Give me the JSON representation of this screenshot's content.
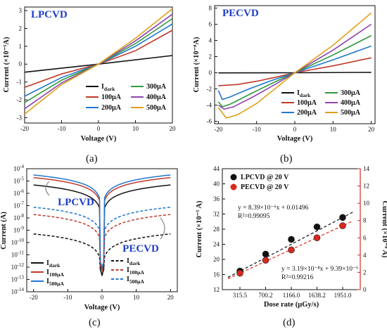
{
  "colors": {
    "dark": "#111111",
    "i100": "#c0392b",
    "i200": "#1f77d0",
    "i300": "#2e9a3e",
    "i400": "#8e44ad",
    "i500": "#e0a01a",
    "tag": "#1e3ec8",
    "right_axis": "#d9281e"
  },
  "chart_data": [
    {
      "panel": "(a)",
      "type": "line",
      "tag": "LPCVD",
      "xlabel": "Voltage (V)",
      "ylabel": "Current (×10⁻⁵A)",
      "xlim": [
        -20,
        20
      ],
      "ylim": [
        -3.3,
        3.2
      ],
      "xticks": [
        "-20",
        "-10",
        "0",
        "10",
        "20"
      ],
      "yticks": [
        "-3",
        "-2",
        "-1",
        "0",
        "1",
        "2",
        "3"
      ],
      "legend": [
        {
          "label": "Idark",
          "main": "I",
          "sub": "dark",
          "key": "dark"
        },
        {
          "label": "300µA",
          "key": "i300"
        },
        {
          "label": "100µA",
          "key": "i100"
        },
        {
          "label": "400µA",
          "key": "i400"
        },
        {
          "label": "200µA",
          "key": "i200"
        },
        {
          "label": "500µA",
          "key": "i500"
        }
      ],
      "series": [
        {
          "name": "Idark",
          "key": "dark",
          "points": [
            [
              -20,
              -0.45
            ],
            [
              0,
              0
            ],
            [
              20,
              0.48
            ]
          ]
        },
        {
          "name": "100µA",
          "key": "i100",
          "points": [
            [
              -20,
              -1.3
            ],
            [
              -10,
              -0.55
            ],
            [
              0,
              0
            ],
            [
              10,
              0.75
            ],
            [
              20,
              1.9
            ]
          ]
        },
        {
          "name": "200µA",
          "key": "i200",
          "points": [
            [
              -20,
              -1.8
            ],
            [
              -10,
              -0.75
            ],
            [
              0,
              0
            ],
            [
              10,
              1.0
            ],
            [
              20,
              2.25
            ]
          ]
        },
        {
          "name": "300µA",
          "key": "i300",
          "points": [
            [
              -20,
              -2.15
            ],
            [
              -10,
              -0.9
            ],
            [
              0,
              0
            ],
            [
              10,
              1.15
            ],
            [
              20,
              2.55
            ]
          ]
        },
        {
          "name": "400µA",
          "key": "i400",
          "points": [
            [
              -20,
              -2.5
            ],
            [
              -10,
              -1.05
            ],
            [
              0,
              0
            ],
            [
              10,
              1.3
            ],
            [
              20,
              2.8
            ]
          ]
        },
        {
          "name": "500µA",
          "key": "i500",
          "points": [
            [
              -20,
              -2.8
            ],
            [
              -10,
              -1.15
            ],
            [
              0,
              0
            ],
            [
              10,
              1.45
            ],
            [
              20,
              3.1
            ]
          ]
        }
      ]
    },
    {
      "panel": "(b)",
      "type": "line",
      "tag": "PECVD",
      "xlabel": "Voltage (V)",
      "ylabel": "Current (×10⁻⁸A)",
      "xlim": [
        -21,
        21
      ],
      "ylim": [
        -6.3,
        8.3
      ],
      "xticks": [
        "-20",
        "-10",
        "0",
        "10",
        "20"
      ],
      "yticks": [
        "-6",
        "-4",
        "-2",
        "0",
        "2",
        "4",
        "6",
        "8"
      ],
      "legend": [
        {
          "label": "Idark",
          "main": "I",
          "sub": "dark",
          "key": "dark"
        },
        {
          "label": "300µA",
          "key": "i300"
        },
        {
          "label": "100µA",
          "key": "i100"
        },
        {
          "label": "400µA",
          "key": "i400"
        },
        {
          "label": "200µA",
          "key": "i200"
        },
        {
          "label": "500µA",
          "key": "i500"
        }
      ],
      "series": [
        {
          "name": "Idark",
          "key": "dark",
          "points": [
            [
              -20,
              -0.02
            ],
            [
              0,
              0
            ],
            [
              20,
              0.05
            ]
          ]
        },
        {
          "name": "100µA",
          "key": "i100",
          "points": [
            [
              -20,
              -1.6
            ],
            [
              -15,
              -1.45
            ],
            [
              -10,
              -1.05
            ],
            [
              -5,
              -0.55
            ],
            [
              0,
              0
            ],
            [
              10,
              0.85
            ],
            [
              20,
              1.85
            ]
          ]
        },
        {
          "name": "200µA",
          "key": "i200",
          "points": [
            [
              -20,
              -2.2
            ],
            [
              -19,
              -3.3
            ],
            [
              -17,
              -3.0
            ],
            [
              -12,
              -2.0
            ],
            [
              -6,
              -0.95
            ],
            [
              0,
              0
            ],
            [
              10,
              1.6
            ],
            [
              20,
              3.3
            ]
          ]
        },
        {
          "name": "300µA",
          "key": "i300",
          "points": [
            [
              -20,
              -3.6
            ],
            [
              -19,
              -4.2
            ],
            [
              -17,
              -3.9
            ],
            [
              -12,
              -2.7
            ],
            [
              -6,
              -1.3
            ],
            [
              0,
              0
            ],
            [
              10,
              2.2
            ],
            [
              20,
              4.6
            ]
          ]
        },
        {
          "name": "400µA",
          "key": "i400",
          "points": [
            [
              -20,
              -4.0
            ],
            [
              -18.5,
              -4.5
            ],
            [
              -16,
              -4.2
            ],
            [
              -11,
              -3.0
            ],
            [
              -5,
              -1.4
            ],
            [
              0,
              0
            ],
            [
              10,
              2.8
            ],
            [
              20,
              6.0
            ]
          ]
        },
        {
          "name": "500µA",
          "key": "i500",
          "points": [
            [
              -20,
              -4.3
            ],
            [
              -18,
              -5.6
            ],
            [
              -15,
              -5.2
            ],
            [
              -10,
              -3.8
            ],
            [
              -5,
              -1.9
            ],
            [
              0,
              0
            ],
            [
              10,
              3.4
            ],
            [
              20,
              7.4
            ]
          ]
        }
      ]
    },
    {
      "panel": "(c)",
      "type": "line",
      "log_y": true,
      "xlabel": "Voltage (V)",
      "ylabel": "Current (A)",
      "xlim": [
        -22,
        22
      ],
      "ylim_exp": [
        -14,
        -4
      ],
      "xticks": [
        "-20",
        "-10",
        "0",
        "10",
        "20"
      ],
      "ytick_exps": [
        "-14",
        "-13",
        "-12",
        "-11",
        "-10",
        "-9",
        "-8",
        "-7",
        "-6",
        "-5",
        "-4"
      ],
      "annotations": [
        "LPCVD",
        "PECVD"
      ],
      "legend_left": [
        {
          "label": "Idark",
          "main": "I",
          "sub": "dark",
          "key": "dark"
        },
        {
          "label": "I100µA",
          "main": "I",
          "sub": "100µA",
          "key": "i100"
        },
        {
          "label": "I500µA",
          "main": "I",
          "sub": "500µA",
          "key": "i200"
        }
      ],
      "legend_right": [
        {
          "label": "Idark",
          "main": "I",
          "sub": "dark",
          "key": "dark"
        },
        {
          "label": "I100µA",
          "main": "I",
          "sub": "100µA",
          "key": "i100"
        },
        {
          "label": "I500µA",
          "main": "I",
          "sub": "500µA",
          "key": "i200"
        }
      ],
      "series": [
        {
          "name": "LPCVD Idark",
          "key": "dark",
          "dashed": false,
          "at20": 4.8e-06,
          "floor": 2e-13
        },
        {
          "name": "LPCVD I100µA",
          "key": "i100",
          "dashed": false,
          "at20": 1.9e-05,
          "floor": 5e-13
        },
        {
          "name": "LPCVD I500µA",
          "key": "i200",
          "dashed": false,
          "at20": 3.1e-05,
          "floor": 8e-13
        },
        {
          "name": "PECVD Idark",
          "key": "dark",
          "dashed": true,
          "at20": 5e-10,
          "floor": 2e-13
        },
        {
          "name": "PECVD I100µA",
          "key": "i100",
          "dashed": true,
          "at20": 1.9e-08,
          "floor": 5e-13
        },
        {
          "name": "PECVD I500µA",
          "key": "i200",
          "dashed": true,
          "at20": 7.4e-08,
          "floor": 8e-13
        }
      ]
    },
    {
      "panel": "(d)",
      "type": "scatter",
      "xlabel": "Dose rate (µGy/s)",
      "ylabel": "Current (×10⁻⁵ A)",
      "ylabel_right": "Current (×10⁻⁸ A)",
      "categories": [
        "315.5",
        "700.2",
        "1166.0",
        "1638.2",
        "1951.0"
      ],
      "ylim": [
        12,
        44
      ],
      "ylim_right": [
        0,
        14
      ],
      "yticks": [
        "12",
        "16",
        "20",
        "24",
        "28",
        "32",
        "36",
        "40",
        "44"
      ],
      "yticks_right": [
        "0",
        "2",
        "4",
        "6",
        "8",
        "10",
        "12",
        "14"
      ],
      "legend": [
        "LPCVD @ 20 V",
        "PECVD @ 20 V"
      ],
      "fit_lpcvd": {
        "eq": "y = 8.39×10⁻⁶x + 0.01496",
        "r2": "R²=0.99095"
      },
      "fit_pecvd": {
        "eq": "y = 3.19×10⁻⁸x + 9.39×10⁻⁶",
        "r2": "R²=0.99216"
      },
      "series": [
        {
          "name": "LPCVD @ 20 V",
          "key": "dark",
          "axis": "left",
          "values": [
            16.9,
            21.4,
            25.3,
            28.6,
            31.1
          ]
        },
        {
          "name": "PECVD @ 20 V",
          "key": "red",
          "axis": "right",
          "values": [
            1.9,
            3.4,
            4.6,
            6.0,
            7.4
          ]
        }
      ]
    }
  ]
}
